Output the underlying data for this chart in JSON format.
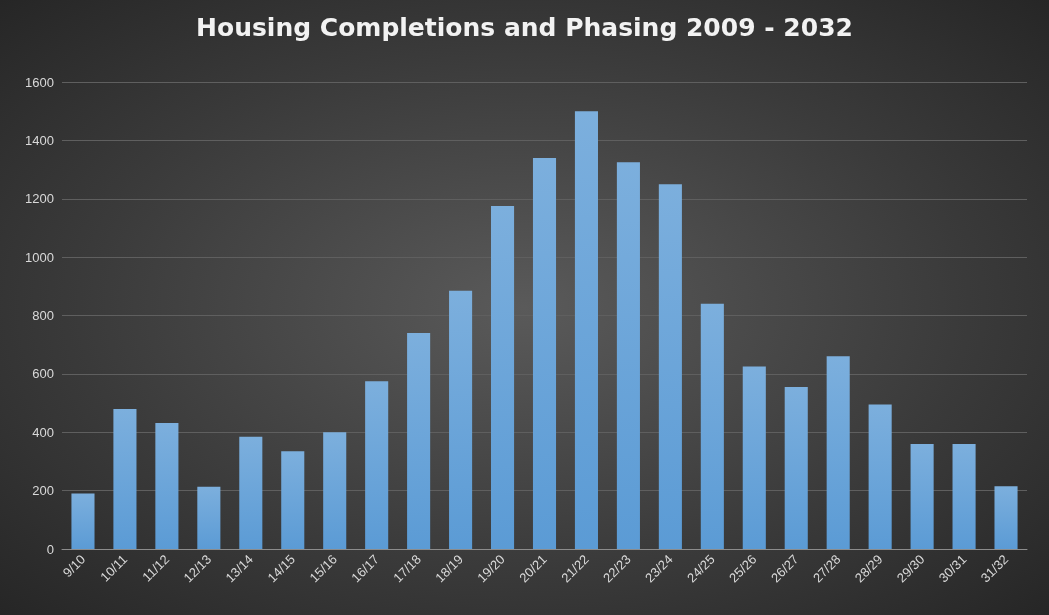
{
  "chart_data": {
    "type": "bar",
    "title": "Housing Completions and Phasing 2009 - 2032",
    "categories": [
      "9/10",
      "10/11",
      "11/12",
      "12/13",
      "13/14",
      "14/15",
      "15/16",
      "16/17",
      "17/18",
      "18/19",
      "19/20",
      "20/21",
      "21/22",
      "22/23",
      "23/24",
      "24/25",
      "25/26",
      "26/27",
      "27/28",
      "28/29",
      "29/30",
      "30/31",
      "31/32"
    ],
    "values": [
      190,
      480,
      432,
      213,
      385,
      335,
      400,
      575,
      740,
      885,
      1175,
      1340,
      1500,
      1325,
      1250,
      840,
      625,
      555,
      660,
      495,
      360,
      360,
      215
    ],
    "color": "#5b9bd5",
    "ylim": [
      0,
      1600
    ],
    "yticks": [
      0,
      200,
      400,
      600,
      800,
      1000,
      1200,
      1400,
      1600
    ],
    "grid": "y"
  }
}
